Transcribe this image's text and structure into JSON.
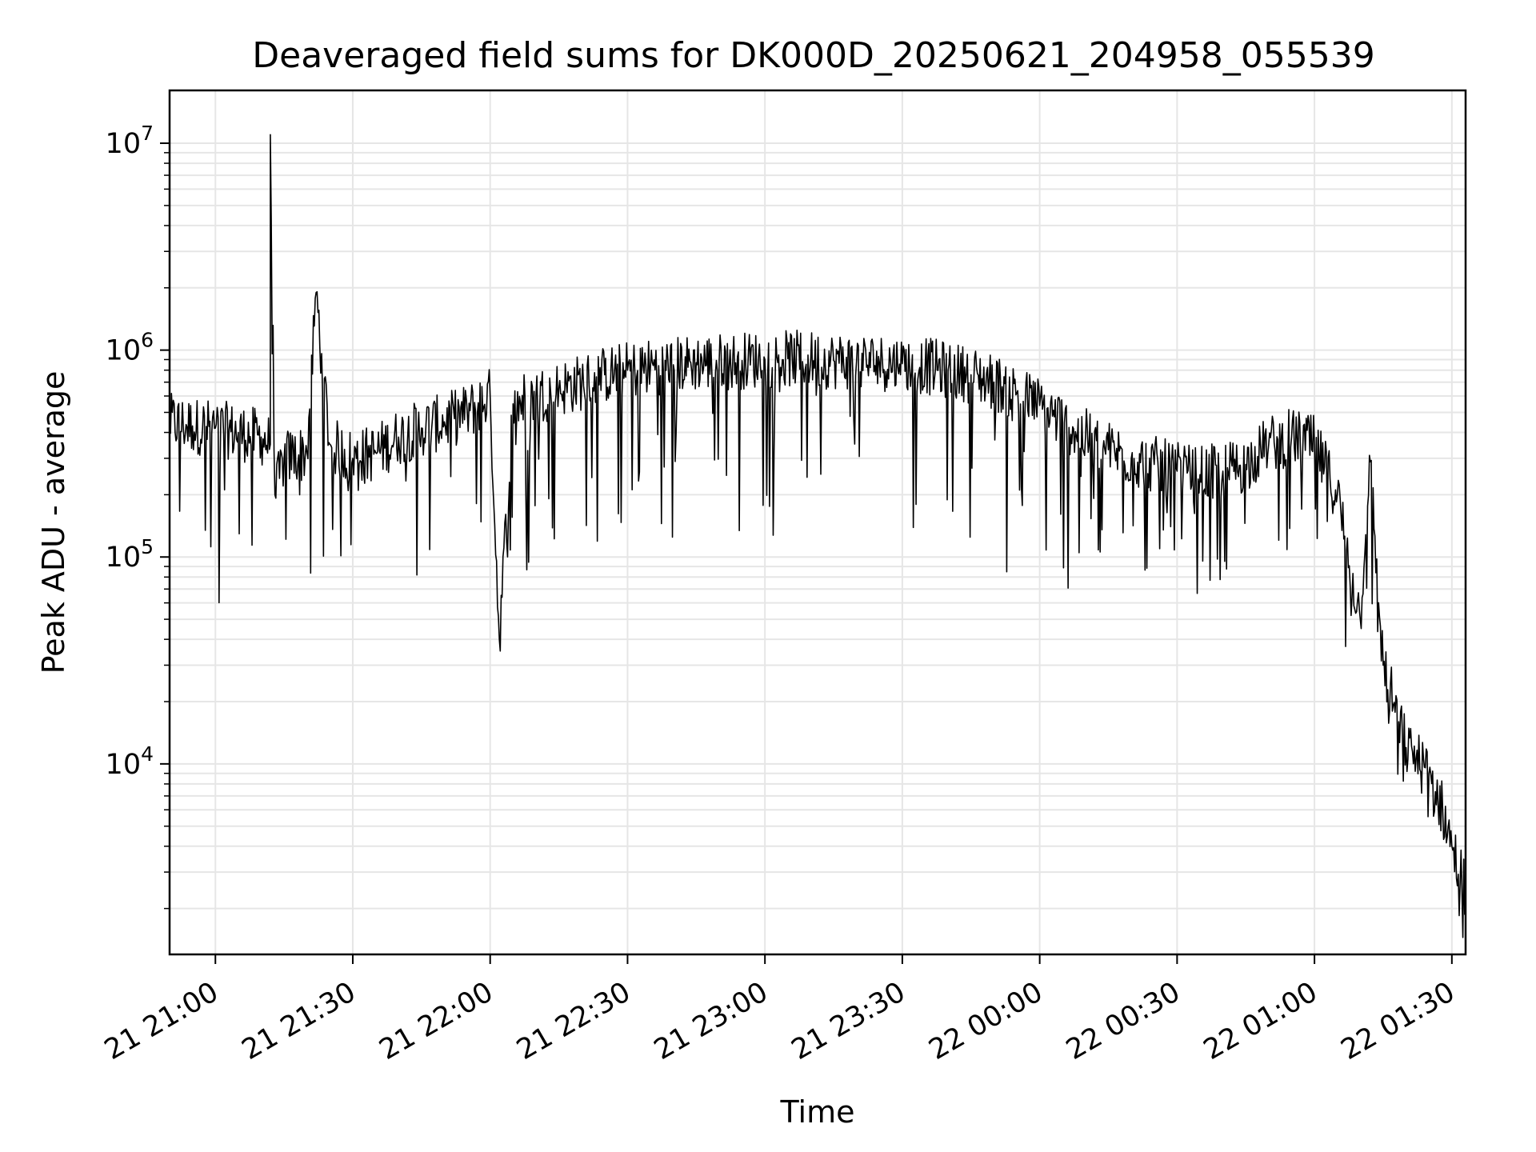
{
  "chart_data": {
    "type": "line",
    "title": "Deaveraged field sums for DK000D_20250621_204958_055539",
    "xlabel": "Time",
    "ylabel": "Peak ADU - average",
    "yscale": "log",
    "ylim": [
      1200,
      18000000
    ],
    "xlim": [
      "2025-06-21 20:50",
      "2025-06-22 01:33"
    ],
    "grid": true,
    "line_color": "#000000",
    "grid_color": "#e6e6e6",
    "x_ticks": [
      "21 21:00",
      "21 21:30",
      "21 22:00",
      "21 22:30",
      "21 23:00",
      "21 23:30",
      "22 00:00",
      "22 00:30",
      "22 01:00",
      "22 01:30"
    ],
    "y_ticks": [
      {
        "value": 10000,
        "base": "10",
        "exp": "4"
      },
      {
        "value": 100000,
        "base": "10",
        "exp": "5"
      },
      {
        "value": 1000000,
        "base": "10",
        "exp": "6"
      },
      {
        "value": 10000000,
        "base": "10",
        "exp": "7"
      }
    ],
    "series": [
      {
        "x": [
          "2025-06-21 20:50",
          "2025-06-21 20:55",
          "2025-06-21 21:00",
          "2025-06-21 21:05",
          "2025-06-21 21:10",
          "2025-06-21 21:12",
          "2025-06-21 21:12",
          "2025-06-21 21:13",
          "2025-06-21 21:15",
          "2025-06-21 21:20",
          "2025-06-21 21:22",
          "2025-06-21 21:25",
          "2025-06-21 21:30",
          "2025-06-21 21:35",
          "2025-06-21 21:40",
          "2025-06-21 21:45",
          "2025-06-21 21:50",
          "2025-06-21 21:55",
          "2025-06-21 22:00",
          "2025-06-21 22:02",
          "2025-06-21 22:05",
          "2025-06-21 22:10",
          "2025-06-21 22:15",
          "2025-06-21 22:20",
          "2025-06-21 22:25",
          "2025-06-21 22:30",
          "2025-06-21 22:35",
          "2025-06-21 22:40",
          "2025-06-21 22:45",
          "2025-06-21 22:50",
          "2025-06-21 22:55",
          "2025-06-21 23:00",
          "2025-06-21 23:05",
          "2025-06-21 23:10",
          "2025-06-21 23:15",
          "2025-06-21 23:20",
          "2025-06-21 23:25",
          "2025-06-21 23:30",
          "2025-06-21 23:35",
          "2025-06-21 23:40",
          "2025-06-21 23:45",
          "2025-06-21 23:50",
          "2025-06-21 23:55",
          "2025-06-22 00:00",
          "2025-06-22 00:05",
          "2025-06-22 00:10",
          "2025-06-22 00:15",
          "2025-06-22 00:20",
          "2025-06-22 00:25",
          "2025-06-22 00:30",
          "2025-06-22 00:35",
          "2025-06-22 00:40",
          "2025-06-22 00:45",
          "2025-06-22 00:50",
          "2025-06-22 00:55",
          "2025-06-22 01:00",
          "2025-06-22 01:05",
          "2025-06-22 01:10",
          "2025-06-22 01:12",
          "2025-06-22 01:15",
          "2025-06-22 01:20",
          "2025-06-22 01:25",
          "2025-06-22 01:28",
          "2025-06-22 01:30",
          "2025-06-22 01:33"
        ],
        "y": [
          450000,
          430000,
          420000,
          400000,
          380000,
          350000,
          11000000,
          200000,
          300000,
          320000,
          1900000,
          350000,
          300000,
          320000,
          380000,
          420000,
          450000,
          500000,
          600000,
          40000,
          550000,
          600000,
          650000,
          700000,
          760000,
          800000,
          830000,
          850000,
          870000,
          880000,
          890000,
          900000,
          910000,
          900000,
          890000,
          880000,
          870000,
          860000,
          840000,
          800000,
          760000,
          700000,
          620000,
          540000,
          450000,
          380000,
          330000,
          300000,
          280000,
          260000,
          250000,
          260000,
          280000,
          350000,
          380000,
          350000,
          200000,
          50000,
          310000,
          30000,
          12000,
          9000,
          6000,
          4000,
          2500
        ]
      }
    ]
  }
}
